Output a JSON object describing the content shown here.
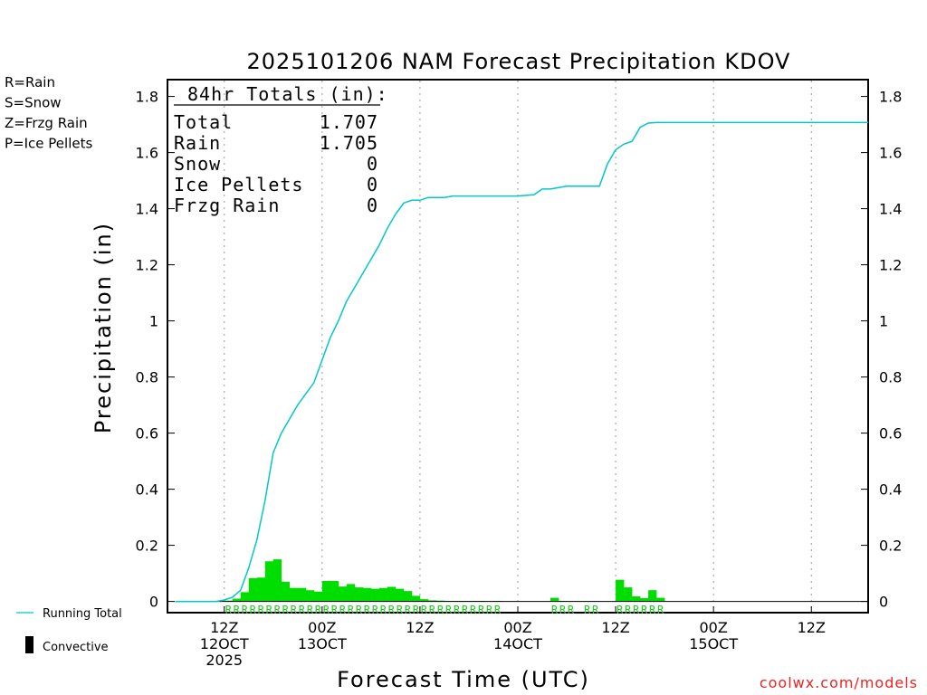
{
  "chart_data": {
    "type": "bar+line",
    "title": "2025101206 NAM Forecast Precipitation KDOV",
    "xlabel": "Forecast Time (UTC)",
    "ylabel": "Precipitation (in)",
    "ylim": [
      -0.04,
      1.86
    ],
    "yticks": [
      0,
      0.2,
      0.4,
      0.6,
      0.8,
      1,
      1.2,
      1.4,
      1.6,
      1.8
    ],
    "ytick_labels": [
      "0",
      "0.2",
      "0.4",
      "0.6",
      "0.8",
      "1",
      "1.2",
      "1.4",
      "1.6",
      "1.8"
    ],
    "x_unit": "forecast hour (from 2025-10-12 06Z)",
    "xlim": [
      0,
      84
    ],
    "xticks": [
      {
        "hour": 6,
        "lines": [
          "12Z",
          "12OCT",
          "2025"
        ]
      },
      {
        "hour": 18,
        "lines": [
          "00Z",
          "13OCT"
        ]
      },
      {
        "hour": 30,
        "lines": [
          "12Z"
        ]
      },
      {
        "hour": 42,
        "lines": [
          "00Z",
          "14OCT"
        ]
      },
      {
        "hour": 54,
        "lines": [
          "12Z"
        ]
      },
      {
        "hour": 66,
        "lines": [
          "00Z",
          "15OCT"
        ]
      },
      {
        "hour": 78,
        "lines": [
          "12Z"
        ]
      }
    ],
    "totals_box": {
      "heading": "84hr Totals (in):",
      "rows": [
        {
          "label": "Total",
          "value": "1.707"
        },
        {
          "label": "Rain",
          "value": "1.705"
        },
        {
          "label": "Snow",
          "value": "0"
        },
        {
          "label": "Ice Pellets",
          "value": "0"
        },
        {
          "label": "Frzg Rain",
          "value": "0"
        }
      ]
    },
    "ptype_legend": [
      {
        "text": "R=Rain",
        "color": "#22cc22"
      },
      {
        "text": "S=Snow",
        "color": "#3355ee"
      },
      {
        "text": "Z=Frzg Rain",
        "color": "#ff8833"
      },
      {
        "text": "P=Ice Pellets",
        "color": "#ee1188"
      }
    ],
    "series_legend": [
      {
        "name": "Running Total",
        "kind": "line",
        "color": "#00c8c8"
      },
      {
        "name": "Convective",
        "kind": "bar",
        "color": "#000000"
      }
    ],
    "rain_bars": {
      "name": "Hourly precipitation (Rain)",
      "color": "#00dd00",
      "x": [
        6,
        7,
        8,
        9,
        10,
        11,
        12,
        13,
        14,
        15,
        16,
        17,
        18,
        19,
        20,
        21,
        22,
        23,
        24,
        25,
        26,
        27,
        28,
        29,
        30,
        31,
        32,
        33,
        34,
        35,
        36,
        37,
        38,
        39,
        46,
        47,
        48,
        49,
        50,
        51,
        54,
        55,
        56,
        57,
        58,
        59
      ],
      "values": [
        0.003,
        0.01,
        0.033,
        0.083,
        0.085,
        0.143,
        0.15,
        0.07,
        0.048,
        0.048,
        0.04,
        0.035,
        0.073,
        0.073,
        0.053,
        0.062,
        0.05,
        0.048,
        0.045,
        0.048,
        0.052,
        0.045,
        0.037,
        0.02,
        0.008,
        0.004,
        0.003,
        0.002,
        0.002,
        0.002,
        0.002,
        0.002,
        0.001,
        0.002,
        0.013,
        0.002,
        0.001,
        0.001,
        0.001,
        0.001,
        0.077,
        0.05,
        0.018,
        0.012,
        0.04,
        0.013
      ]
    },
    "ptype_marks": {
      "symbol": "R",
      "color": "#22cc22",
      "hours": [
        6,
        7,
        8,
        9,
        10,
        11,
        12,
        13,
        14,
        15,
        16,
        17,
        18,
        19,
        20,
        21,
        22,
        23,
        24,
        25,
        26,
        27,
        28,
        29,
        30,
        31,
        32,
        33,
        34,
        35,
        36,
        37,
        38,
        39,
        46,
        47,
        48,
        50,
        51,
        54,
        55,
        56,
        57,
        58,
        59
      ]
    },
    "running_total": {
      "name": "Running Total",
      "color": "#00c8c8",
      "x": [
        0,
        3,
        5,
        6,
        7,
        8,
        9,
        10,
        11,
        12,
        13,
        14,
        15,
        16,
        17,
        18,
        19,
        20,
        21,
        22,
        23,
        24,
        25,
        26,
        27,
        28,
        29,
        30,
        31,
        32,
        33,
        34,
        35,
        36,
        38,
        40,
        42,
        44,
        45,
        46,
        48,
        50,
        52,
        53,
        54,
        55,
        56,
        57,
        58,
        59,
        60,
        84
      ],
      "y": [
        0,
        0,
        0,
        0.005,
        0.015,
        0.04,
        0.12,
        0.22,
        0.36,
        0.53,
        0.6,
        0.65,
        0.7,
        0.74,
        0.78,
        0.86,
        0.94,
        1.0,
        1.07,
        1.12,
        1.17,
        1.22,
        1.27,
        1.33,
        1.38,
        1.42,
        1.43,
        1.43,
        1.44,
        1.44,
        1.44,
        1.445,
        1.445,
        1.445,
        1.445,
        1.445,
        1.445,
        1.45,
        1.47,
        1.47,
        1.48,
        1.48,
        1.48,
        1.56,
        1.61,
        1.63,
        1.64,
        1.69,
        1.705,
        1.707,
        1.707,
        1.707
      ]
    },
    "zero_line": true,
    "grid": "dotted vertical at 00Z/12Z"
  },
  "credit": "coolwx.com/models"
}
